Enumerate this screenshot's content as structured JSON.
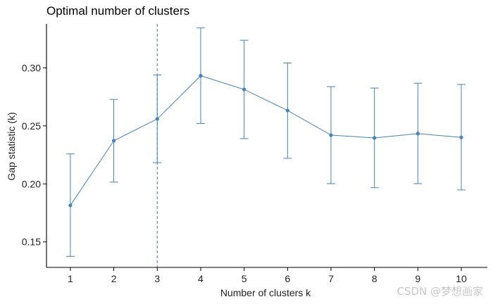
{
  "chart_data": {
    "type": "line",
    "title": "Optimal number of clusters",
    "xlabel": "Number of clusters k",
    "ylabel": "Gap statistic (k)",
    "x": [
      1,
      2,
      3,
      4,
      5,
      6,
      7,
      8,
      9,
      10
    ],
    "series": [
      {
        "values": [
          0.1815,
          0.2372,
          0.256,
          0.2932,
          0.2814,
          0.2633,
          0.242,
          0.2396,
          0.2433,
          0.2401
        ],
        "lower": [
          0.1375,
          0.2015,
          0.2183,
          0.252,
          0.239,
          0.222,
          0.2002,
          0.1967,
          0.2002,
          0.1948
        ],
        "upper": [
          0.2258,
          0.2728,
          0.2938,
          0.3344,
          0.3238,
          0.3042,
          0.2838,
          0.2826,
          0.2868,
          0.2857
        ]
      }
    ],
    "optimal_k": 3,
    "xticks": [
      "1",
      "2",
      "3",
      "4",
      "5",
      "6",
      "7",
      "8",
      "9",
      "10"
    ],
    "yticks": [
      "0.15",
      "0.20",
      "0.25",
      "0.30"
    ],
    "xlim": [
      0.45,
      10.6
    ],
    "ylim": [
      0.128,
      0.3415
    ],
    "grid": false,
    "line_color": "#4682b4"
  },
  "watermark": "CSDN @梦想画家"
}
